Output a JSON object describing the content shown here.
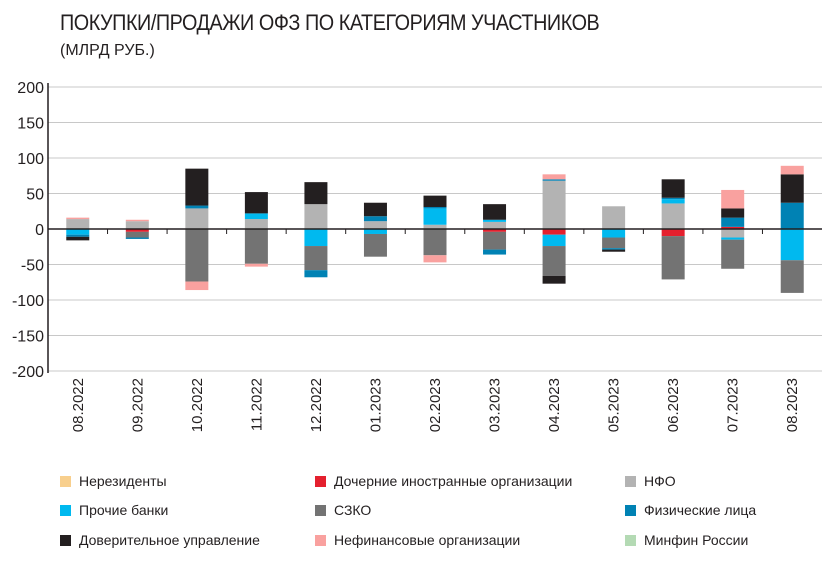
{
  "title": "ПОКУПКИ/ПРОДАЖИ ОФЗ ПО КАТЕГОРИЯМ УЧАСТНИКОВ",
  "subtitle": "(МЛРД РУБ.)",
  "chart_data": {
    "type": "bar",
    "stacked": true,
    "title": "ПОКУПКИ/ПРОДАЖИ ОФЗ ПО КАТЕГОРИЯМ УЧАСТНИКОВ",
    "subtitle": "(МЛРД РУБ.)",
    "ylim": [
      -200,
      200
    ],
    "yticks": [
      200,
      150,
      100,
      50,
      0,
      -50,
      -100,
      -150,
      -200
    ],
    "grid": true,
    "legend_position": "bottom",
    "categories": [
      "08.2022",
      "09.2022",
      "10.2022",
      "11.2022",
      "12.2022",
      "01.2023",
      "02.2023",
      "03.2023",
      "04.2023",
      "05.2023",
      "06.2023",
      "07.2023",
      "08.2023"
    ],
    "series": [
      {
        "name": "Нерезиденты",
        "color": "#f8cf8d",
        "values": [
          0,
          0,
          0,
          0,
          0,
          0,
          0,
          0,
          0,
          0,
          0,
          0,
          0
        ]
      },
      {
        "name": "Дочерние иностранные организации",
        "color": "#e4202e",
        "values": [
          0,
          -4,
          0,
          0,
          0,
          0,
          0,
          -4,
          -8,
          0,
          -10,
          3,
          0
        ]
      },
      {
        "name": "НФО",
        "color": "#b3b3b3",
        "values": [
          14,
          11,
          29,
          14,
          35,
          11,
          6,
          10,
          68,
          32,
          36,
          -12,
          0
        ]
      },
      {
        "name": "Прочие банки",
        "color": "#00b9ef",
        "values": [
          -8,
          0,
          0,
          8,
          -24,
          -7,
          23,
          3,
          -16,
          -12,
          6,
          -3,
          -44
        ]
      },
      {
        "name": "СЗКО",
        "color": "#737373",
        "values": [
          0,
          -8,
          -74,
          -49,
          -34,
          -32,
          -37,
          -25,
          -42,
          -15,
          -61,
          -41,
          -46
        ]
      },
      {
        "name": "Физические лица",
        "color": "#0082b4",
        "values": [
          -3,
          -2,
          4,
          0,
          -10,
          7,
          2,
          -7,
          2,
          -2,
          2,
          13,
          37
        ]
      },
      {
        "name": "Доверительное управление",
        "color": "#231f20",
        "values": [
          -5,
          0,
          52,
          30,
          31,
          19,
          16,
          22,
          -11,
          -3,
          26,
          13,
          40
        ]
      },
      {
        "name": "Нефинансовые организации",
        "color": "#f9a19f",
        "values": [
          2,
          2,
          -12,
          -4,
          0,
          0,
          -10,
          0,
          7,
          0,
          0,
          26,
          12
        ]
      },
      {
        "name": "Минфин России",
        "color": "#b4dab4",
        "values": [
          0,
          0,
          0,
          0,
          0,
          0,
          0,
          0,
          0,
          0,
          0,
          0,
          0
        ]
      }
    ]
  }
}
